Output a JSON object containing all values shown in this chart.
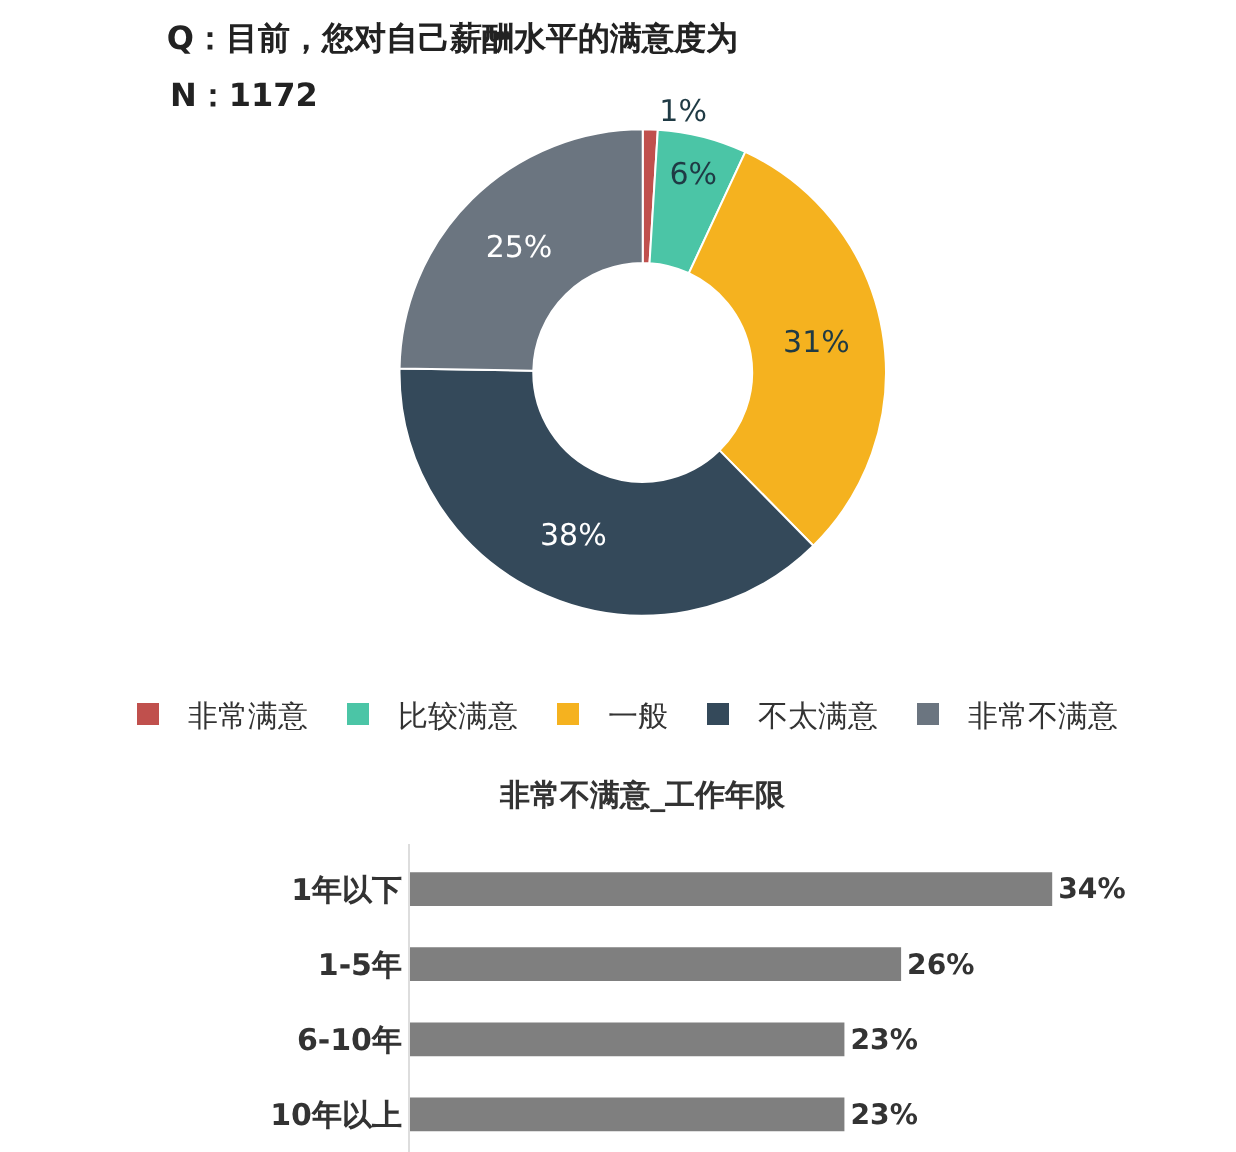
{
  "chart_data": [
    {
      "type": "donut",
      "title": "Q：目前，您对自己薪酬水平的满意度为",
      "subtitle": "N：1172",
      "categories": [
        "非常满意",
        "比较满意",
        "一般",
        "不太满意",
        "非常不满意"
      ],
      "values": [
        1,
        6,
        31,
        38,
        25
      ],
      "value_labels": [
        "1%",
        "6%",
        "31%",
        "38%",
        "25%"
      ],
      "colors": [
        "#c0504d",
        "#4bc5a6",
        "#f5b21f",
        "#34495a",
        "#6b7580"
      ],
      "legend": "bottom"
    },
    {
      "type": "bar",
      "orientation": "horizontal",
      "title": "非常不满意_工作年限",
      "categories": [
        "1年以下",
        "1-5年",
        "6-10年",
        "10年以上"
      ],
      "values": [
        34,
        26,
        23,
        23
      ],
      "value_labels": [
        "34%",
        "26%",
        "23%",
        "23%"
      ],
      "color": "#7f7f7f",
      "tick_labels": "y"
    }
  ]
}
